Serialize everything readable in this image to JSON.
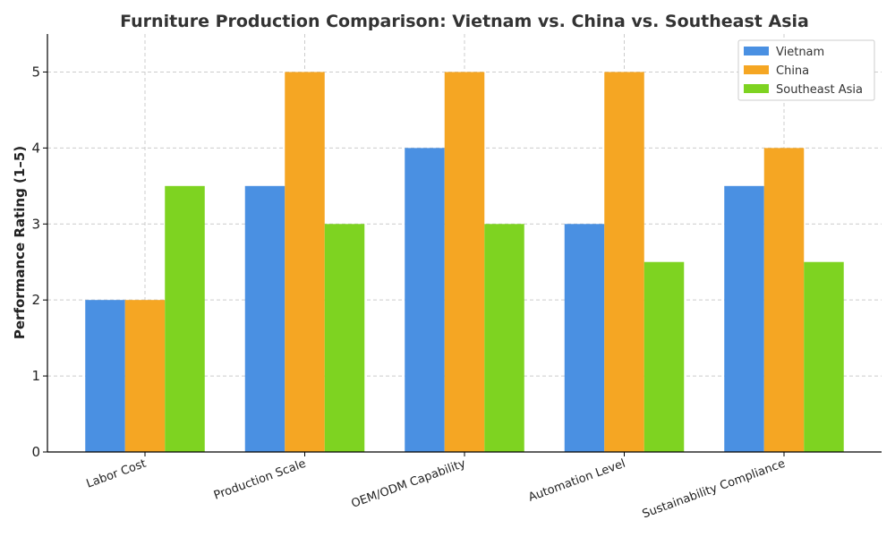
{
  "chart_data": {
    "type": "bar",
    "title": "Furniture Production Comparison: Vietnam vs. China vs. Southeast Asia",
    "xlabel": "",
    "ylabel": "Performance Rating (1–5)",
    "categories": [
      "Labor Cost",
      "Production Scale",
      "OEM/ODM Capability",
      "Automation Level",
      "Sustainability Compliance"
    ],
    "series": [
      {
        "name": "Vietnam",
        "color": "#4a90e2",
        "values": [
          2,
          3.5,
          4,
          3,
          3.5
        ]
      },
      {
        "name": "China",
        "color": "#f5a623",
        "values": [
          2,
          5,
          5,
          5,
          4
        ]
      },
      {
        "name": "Southeast Asia",
        "color": "#7ed321",
        "values": [
          3.5,
          3,
          3,
          2.5,
          2.5
        ]
      }
    ],
    "ylim": [
      0,
      5.5
    ],
    "yticks": [
      0,
      1,
      2,
      3,
      4,
      5
    ],
    "grid": true,
    "legend_position": "top-right"
  }
}
